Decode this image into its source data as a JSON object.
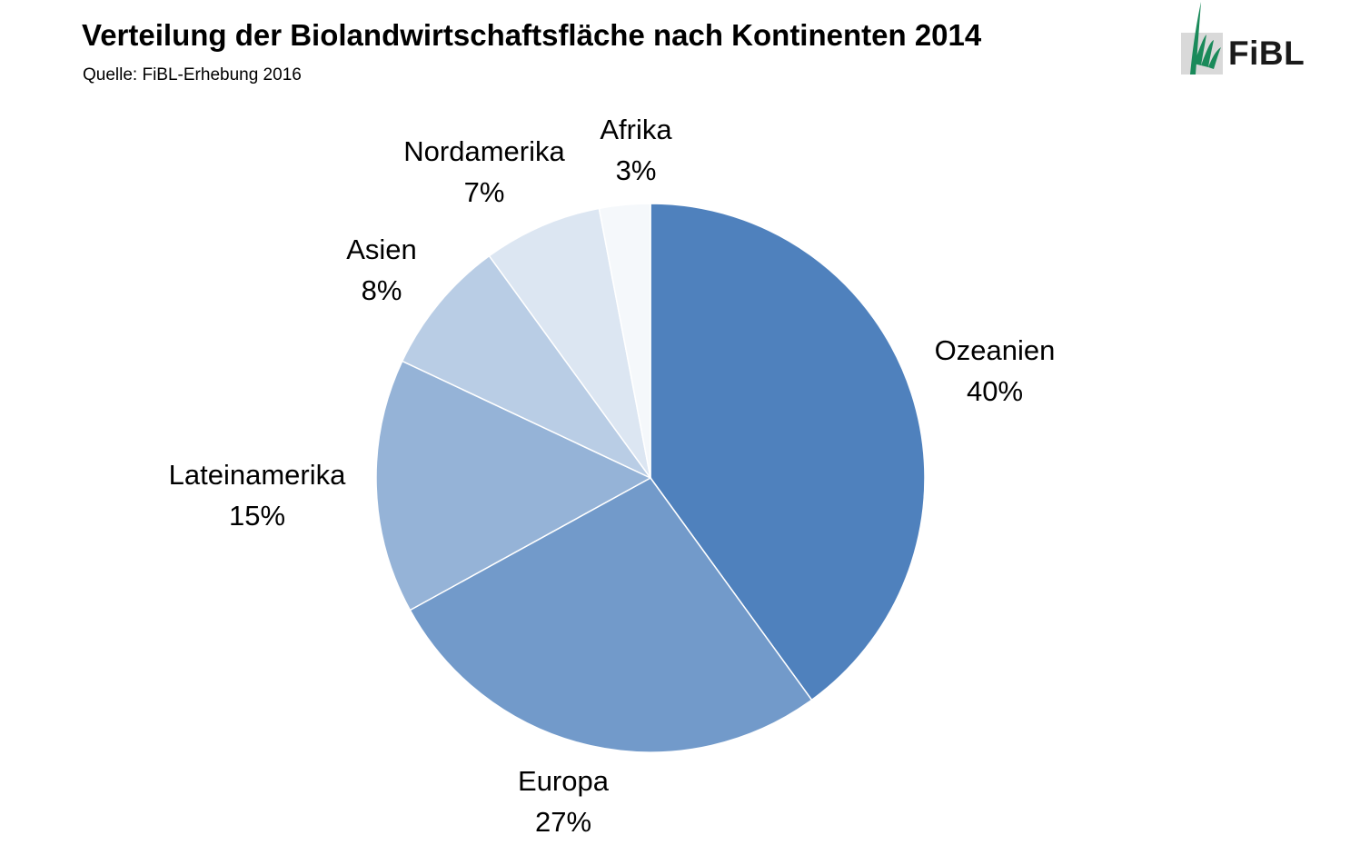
{
  "header": {
    "title": "Verteilung der Biolandwirtschaftsfläche nach Kontinenten 2014",
    "subtitle": "Quelle: FiBL-Erhebung 2016"
  },
  "logo": {
    "text": "FiBL",
    "color": "#1a8a5a"
  },
  "chart_data": {
    "type": "pie",
    "title": "Verteilung der Biolandwirtschaftsfläche nach Kontinenten 2014",
    "start_angle": "12 o'clock",
    "direction": "clockwise",
    "slices": [
      {
        "label": "Ozeanien",
        "value": 40,
        "display": "40%",
        "color": "#4f81bd"
      },
      {
        "label": "Europa",
        "value": 27,
        "display": "27%",
        "color": "#729aca"
      },
      {
        "label": "Lateinamerika",
        "value": 15,
        "display": "15%",
        "color": "#95b3d7"
      },
      {
        "label": "Asien",
        "value": 8,
        "display": "8%",
        "color": "#b9cde5"
      },
      {
        "label": "Nordamerika",
        "value": 7,
        "display": "7%",
        "color": "#dce6f2"
      },
      {
        "label": "Afrika",
        "value": 3,
        "display": "3%",
        "color": "#f5f8fb"
      }
    ]
  }
}
